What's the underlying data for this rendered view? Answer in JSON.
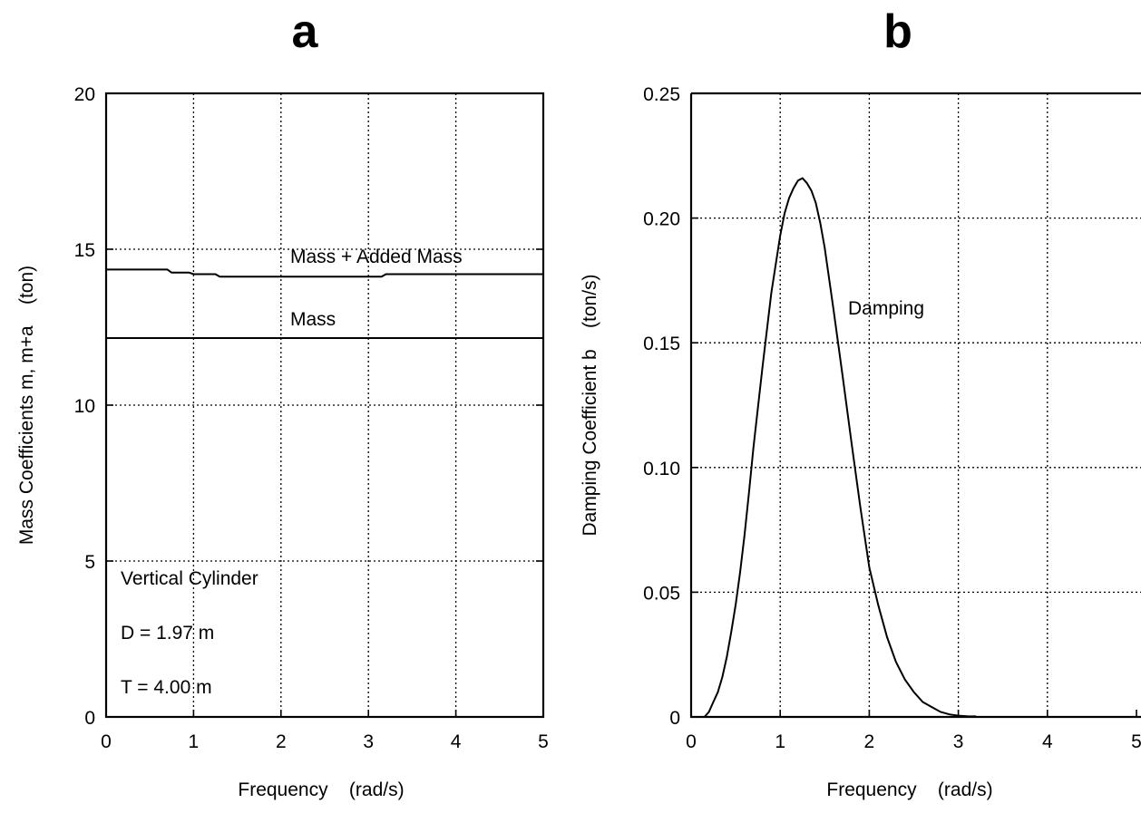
{
  "chart_data": [
    {
      "type": "line",
      "panel_label": "a",
      "xlabel": "Frequency    (rad/s)",
      "ylabel": "Mass Coefficients m, m+a    (ton)",
      "xlim": [
        0,
        5
      ],
      "ylim": [
        0,
        20
      ],
      "x_ticks": [
        "0",
        "1",
        "2",
        "3",
        "4",
        "5"
      ],
      "y_ticks": [
        "0",
        "5",
        "10",
        "15",
        "20"
      ],
      "grid": true,
      "series": [
        {
          "name": "Mass + Added Mass",
          "x": [
            0,
            0.3,
            0.5,
            0.7,
            0.75,
            0.95,
            1.0,
            1.25,
            1.3,
            2.0,
            2.5,
            3.0,
            3.15,
            3.2,
            4.0,
            5.0
          ],
          "y": [
            14.35,
            14.35,
            14.35,
            14.35,
            14.25,
            14.25,
            14.2,
            14.2,
            14.12,
            14.12,
            14.12,
            14.12,
            14.12,
            14.2,
            14.2,
            14.2
          ]
        },
        {
          "name": "Mass",
          "x": [
            0,
            1,
            2,
            3,
            4,
            5
          ],
          "y": [
            12.15,
            12.15,
            12.15,
            12.15,
            12.15,
            12.15
          ]
        }
      ],
      "annotations": [
        {
          "text": "Mass + Added Mass",
          "series": "Mass + Added Mass"
        },
        {
          "text": "Mass",
          "series": "Mass"
        },
        {
          "text": "Vertical Cylinder"
        },
        {
          "text": "D = 1.97 m"
        },
        {
          "text": "T = 4.00 m"
        }
      ]
    },
    {
      "type": "line",
      "panel_label": "b",
      "xlabel": "Frequency    (rad/s)",
      "ylabel": "Damping Coefficient b    (ton/s)",
      "xlim": [
        0,
        5
      ],
      "ylim": [
        0,
        0.25
      ],
      "x_ticks": [
        "0",
        "1",
        "2",
        "3",
        "4",
        "5"
      ],
      "y_ticks": [
        "0",
        "0.05",
        "0.10",
        "0.15",
        "0.20",
        "0.25"
      ],
      "grid": true,
      "series": [
        {
          "name": "Damping",
          "x": [
            0.15,
            0.2,
            0.25,
            0.3,
            0.35,
            0.4,
            0.45,
            0.5,
            0.55,
            0.6,
            0.65,
            0.7,
            0.8,
            0.9,
            1.0,
            1.05,
            1.1,
            1.15,
            1.2,
            1.25,
            1.3,
            1.35,
            1.4,
            1.45,
            1.5,
            1.6,
            1.7,
            1.8,
            1.9,
            2.0,
            2.1,
            2.2,
            2.3,
            2.4,
            2.5,
            2.6,
            2.7,
            2.8,
            2.9,
            3.0,
            3.1,
            3.2
          ],
          "y": [
            0,
            0.002,
            0.006,
            0.01,
            0.016,
            0.024,
            0.034,
            0.045,
            0.058,
            0.073,
            0.09,
            0.108,
            0.14,
            0.17,
            0.193,
            0.202,
            0.208,
            0.212,
            0.215,
            0.216,
            0.214,
            0.211,
            0.206,
            0.198,
            0.188,
            0.163,
            0.137,
            0.11,
            0.084,
            0.06,
            0.045,
            0.032,
            0.022,
            0.015,
            0.01,
            0.006,
            0.004,
            0.002,
            0.001,
            0.0005,
            0.0003,
            0.0002
          ]
        }
      ],
      "annotations": [
        {
          "text": "Damping",
          "series": "Damping"
        }
      ]
    }
  ]
}
